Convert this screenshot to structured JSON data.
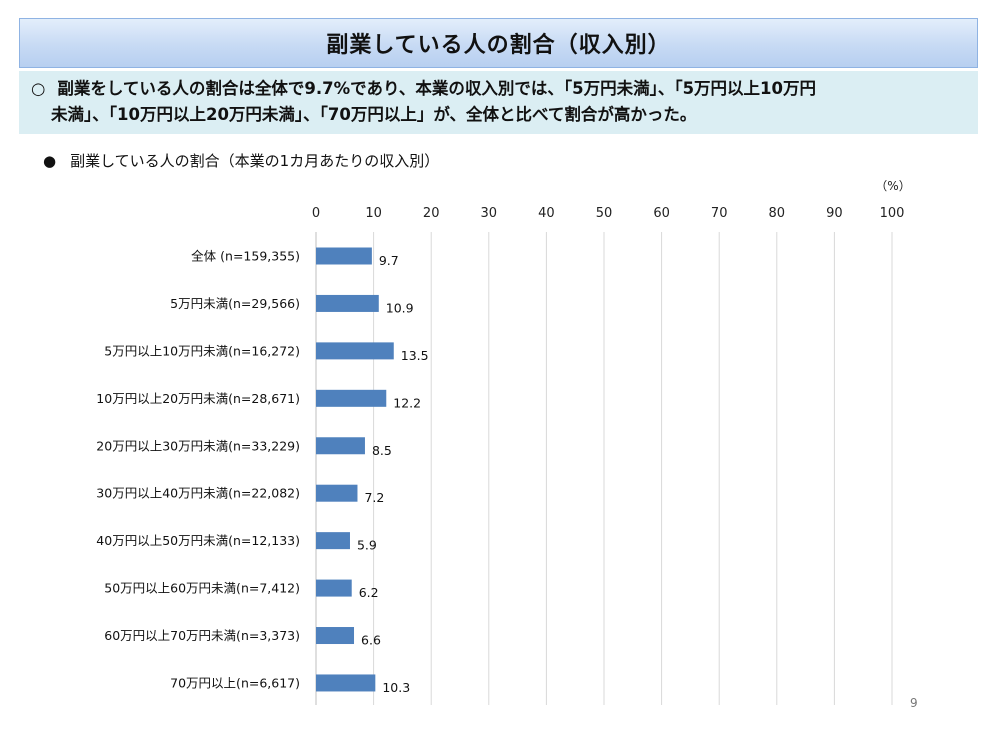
{
  "slide": {
    "title": "副業している人の割合（収入別）",
    "summary_bullet": "○",
    "summary_line1": "副業をしている人の割合は全体で9.7%であり、本業の収入別では、「5万円未満」、「5万円以上10万円",
    "summary_line2": "未満」、「10万円以上20万円未満」、「70万円以上」が、全体と比べて割合が高かった。",
    "chart_bullet": "●",
    "chart_title": "副業している人の割合（本業の1カ月あたりの収入別）",
    "page_number": "9"
  },
  "chart_data": {
    "type": "bar",
    "orientation": "horizontal",
    "unit_label": "（%）",
    "xlim": [
      0,
      100
    ],
    "x_ticks": [
      0,
      10,
      20,
      30,
      40,
      50,
      60,
      70,
      80,
      90,
      100
    ],
    "grid": true,
    "categories": [
      "全体 (n=159,355)",
      "5万円未満(n=29,566)",
      "5万円以上10万円未満(n=16,272)",
      "10万円以上20万円未満(n=28,671)",
      "20万円以上30万円未満(n=33,229)",
      "30万円以上40万円未満(n=22,082)",
      "40万円以上50万円未満(n=12,133)",
      "50万円以上60万円未満(n=7,412)",
      "60万円以上70万円未満(n=3,373)",
      "70万円以上(n=6,617)"
    ],
    "values": [
      9.7,
      10.9,
      13.5,
      12.2,
      8.5,
      7.2,
      5.9,
      6.2,
      6.6,
      10.3
    ],
    "value_labels": [
      "9.7",
      "10.9",
      "13.5",
      "12.2",
      "8.5",
      "7.2",
      "5.9",
      "6.2",
      "6.6",
      "10.3"
    ],
    "bar_color": "#4f81bd",
    "grid_color": "#d9d9d9"
  }
}
